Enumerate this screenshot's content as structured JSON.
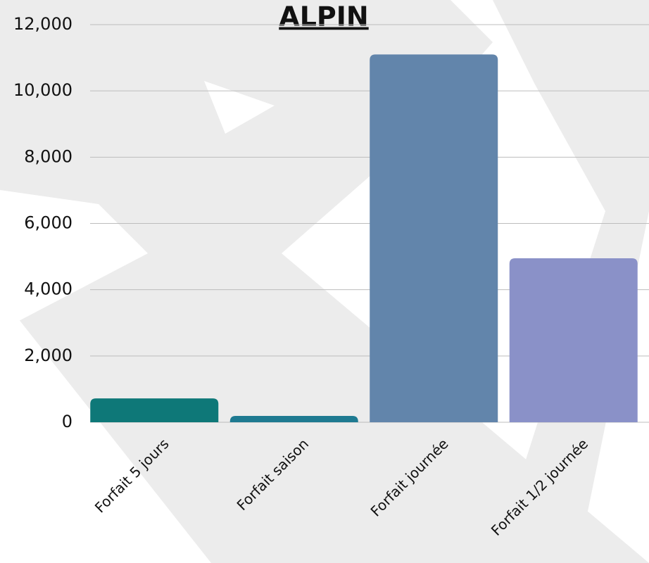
{
  "chart_data": {
    "type": "bar",
    "title": "ALPIN",
    "categories": [
      "Forfait 5 jours",
      "Forfait saison",
      "Forfait journée",
      "Forfait 1/2 journée"
    ],
    "values": [
      720,
      190,
      11100,
      4950
    ],
    "colors": [
      "#0e7878",
      "#1e7a91",
      "#6285ab",
      "#8a91c8"
    ],
    "ylim": [
      0,
      12000
    ],
    "yticks": [
      0,
      {
        "value": 2000,
        "label": "2,000"
      },
      {
        "value": 4000,
        "label": "4,000"
      },
      {
        "value": 6000,
        "label": "6,000"
      },
      {
        "value": 8000,
        "label": "8,000"
      },
      {
        "value": 10000,
        "label": "10,000"
      },
      {
        "value": 12000,
        "label": "12,000"
      }
    ],
    "grid": true
  }
}
